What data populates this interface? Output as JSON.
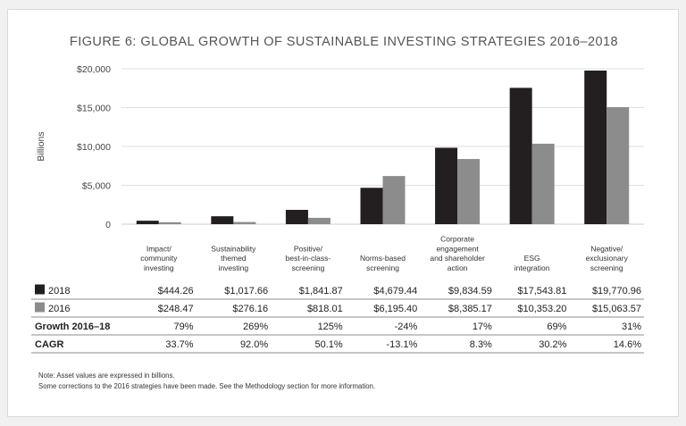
{
  "chart_data": {
    "type": "bar",
    "title": "FIGURE 6: GLOBAL GROWTH OF SUSTAINABLE INVESTING STRATEGIES 2016–2018",
    "ylabel": "Billions",
    "xlabel": "",
    "ylim": [
      0,
      20000
    ],
    "yticks": [
      0,
      5000,
      10000,
      15000,
      20000
    ],
    "ytick_labels": [
      "0",
      "$5,000",
      "$10,000",
      "$15,000",
      "$20,000"
    ],
    "grid": true,
    "categories": [
      [
        "Impact/",
        "community",
        "investing"
      ],
      [
        "Sustainability",
        "themed",
        "investing"
      ],
      [
        "Positive/",
        "best-in-class-",
        "screening"
      ],
      [
        "Norms-based",
        "screening"
      ],
      [
        "Corporate",
        "engagement",
        "and shareholder",
        "action"
      ],
      [
        "ESG",
        "integration"
      ],
      [
        "Negative/",
        "exclusionary",
        "screening"
      ]
    ],
    "series": [
      {
        "name": "2018",
        "color": "#231f20",
        "values": [
          444.26,
          1017.66,
          1841.87,
          4679.44,
          9834.59,
          17543.81,
          19770.96
        ],
        "labels": [
          "$444.26",
          "$1,017.66",
          "$1,841.87",
          "$4,679.44",
          "$9,834.59",
          "$17,543.81",
          "$19,770.96"
        ]
      },
      {
        "name": "2016",
        "color": "#8c8c8c",
        "values": [
          248.47,
          276.16,
          818.01,
          6195.4,
          8385.17,
          10353.2,
          15063.57
        ],
        "labels": [
          "$248.47",
          "$276.16",
          "$818.01",
          "$6,195.40",
          "$8,385.17",
          "$10,353.20",
          "$15,063.57"
        ]
      }
    ],
    "table_rows": [
      {
        "label": "Growth 2016–18",
        "values": [
          "79%",
          "269%",
          "125%",
          "-24%",
          "17%",
          "69%",
          "31%"
        ]
      },
      {
        "label": "CAGR",
        "values": [
          "33.7%",
          "92.0%",
          "50.1%",
          "-13.1%",
          "8.3%",
          "30.2%",
          "14.6%"
        ]
      }
    ]
  },
  "notes": [
    "Note: Asset values are expressed in billions.",
    "Some corrections to the 2016 strategies have been made. See the Methodology section for more information."
  ]
}
